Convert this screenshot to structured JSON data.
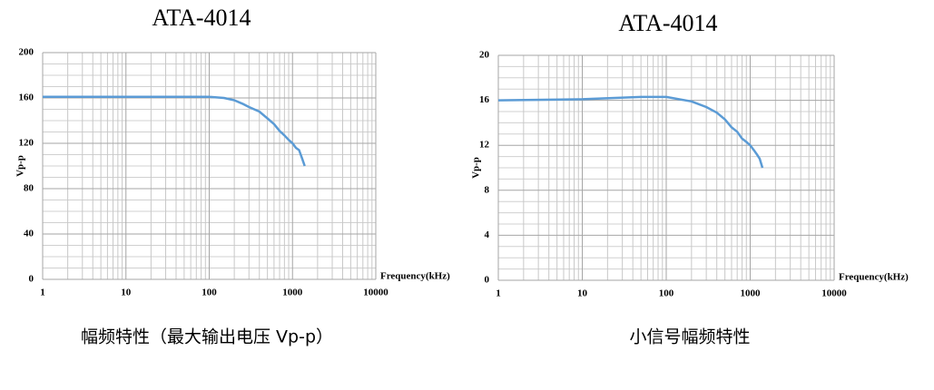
{
  "chart_data": [
    {
      "type": "line",
      "title": "ATA-4014",
      "x_label": "Frequency(kHz)",
      "y_label": "Vp-p",
      "caption": "幅频特性（最大输出电压 Vp-p）",
      "x_log": true,
      "grid": true,
      "minor_grid": true,
      "xlim": [
        1,
        10000
      ],
      "xticks": [
        1,
        10,
        100,
        1000,
        10000
      ],
      "ylim": [
        0,
        200
      ],
      "yticks": [
        0,
        40,
        80,
        120,
        160,
        200
      ],
      "x": [
        1,
        10,
        100,
        150,
        200,
        250,
        300,
        400,
        500,
        600,
        700,
        800,
        900,
        1000,
        1100,
        1200,
        1300,
        1400
      ],
      "series": [
        {
          "name": "Vp-p",
          "color": "#5b9bd5",
          "values": [
            161,
            161,
            161,
            160,
            158,
            155,
            152,
            148,
            142,
            137,
            131,
            127,
            123,
            120,
            116,
            114,
            107,
            100
          ]
        }
      ]
    },
    {
      "type": "line",
      "title": "ATA-4014",
      "x_label": "Frequency(kHz)",
      "y_label": "Vp-p",
      "caption": "小信号幅频特性",
      "x_log": true,
      "grid": true,
      "minor_grid": true,
      "xlim": [
        1,
        10000
      ],
      "xticks": [
        1,
        10,
        100,
        1000,
        10000
      ],
      "ylim": [
        0,
        20
      ],
      "yticks": [
        0,
        4,
        8,
        12,
        16,
        20
      ],
      "x": [
        1,
        10,
        50,
        100,
        200,
        300,
        400,
        500,
        600,
        700,
        800,
        900,
        1000,
        1100,
        1200,
        1300,
        1400
      ],
      "series": [
        {
          "name": "Vp-p",
          "color": "#5b9bd5",
          "values": [
            16,
            16.1,
            16.3,
            16.3,
            15.9,
            15.4,
            14.9,
            14.3,
            13.6,
            13.2,
            12.6,
            12.3,
            12,
            11.6,
            11.2,
            10.8,
            10
          ]
        }
      ]
    }
  ]
}
